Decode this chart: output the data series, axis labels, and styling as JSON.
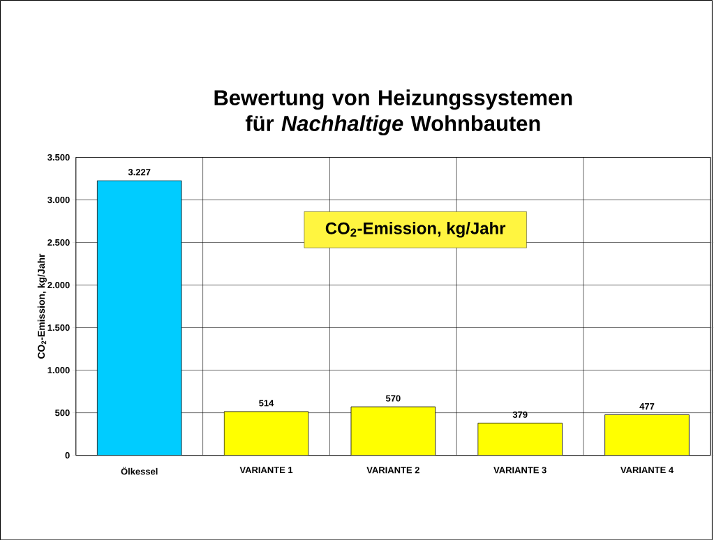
{
  "chart_data": {
    "type": "bar",
    "title": "Bewertung von Heizungssystemen für *Nachhaltige* Wohnbauten",
    "ylabel": "CO$_{2}$-Emission, kg/Jahr",
    "categories": [
      "Ölkessel",
      "VARIANTE 1",
      "VARIANTE 2",
      "VARIANTE 3",
      "VARIANTE 4"
    ],
    "values": [
      3227,
      514,
      570,
      379,
      477
    ],
    "colors": [
      "#00ccff",
      "#ffff00",
      "#ffff00",
      "#ffff00",
      "#ffff00"
    ],
    "value_labels": [
      "3.227",
      "514",
      "570",
      "379",
      "477"
    ],
    "ylim": [
      0,
      3500
    ],
    "yticks": [
      0,
      500,
      {
        "value": 1000,
        "label": "1.000"
      },
      {
        "value": 1500,
        "label": "1.500"
      },
      {
        "value": 2000,
        "label": "2.000"
      },
      {
        "value": 2500,
        "label": "2.500"
      },
      {
        "value": 3000,
        "label": "3.000"
      },
      {
        "value": 3500,
        "label": "3.500"
      }
    ],
    "grid": true,
    "annotations": [
      "CO$_{2}$-Emission, kg/Jahr"
    ]
  }
}
